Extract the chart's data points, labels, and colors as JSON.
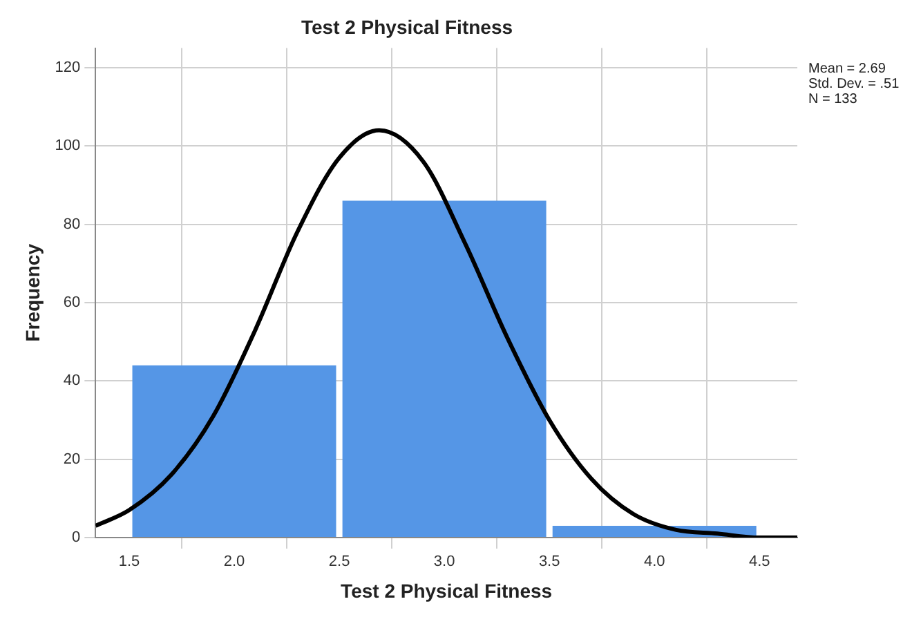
{
  "chart_data": {
    "type": "histogram",
    "title": "Test 2 Physical Fitness",
    "xlabel": "Test 2 Physical Fitness",
    "ylabel": "Frequency",
    "bins": [
      1.5,
      2.5,
      3.5,
      4.5
    ],
    "values": [
      44,
      86,
      3
    ],
    "color": "#5596e6",
    "series": [
      {
        "type": "line",
        "color": "#000000",
        "x": [
          1.34,
          1.5,
          1.7,
          1.9,
          2.1,
          2.3,
          2.5,
          2.69,
          2.9,
          3.1,
          3.3,
          3.5,
          3.7,
          3.9,
          4.1,
          4.3,
          4.5,
          4.68
        ],
        "values": [
          3,
          7,
          16,
          31,
          53,
          78,
          97,
          104,
          96,
          75,
          51,
          30,
          15,
          6,
          2,
          1,
          0,
          0
        ]
      }
    ],
    "xlim": [
      1.34,
      4.68
    ],
    "xticks": [
      1.5,
      {
        "value": 2,
        "label": "2.0"
      },
      2.5,
      {
        "value": 3,
        "label": "3.0"
      },
      3.5,
      {
        "value": 4,
        "label": "4.0"
      },
      4.5
    ],
    "ylim": [
      0,
      125
    ],
    "yticks": [
      0,
      20,
      40,
      60,
      80,
      100,
      120
    ],
    "grid": true,
    "marker": "none",
    "line_style": "solid",
    "annotations": [
      "Mean = 2.69",
      "Std. Dev. = .51",
      "N = 133"
    ]
  }
}
